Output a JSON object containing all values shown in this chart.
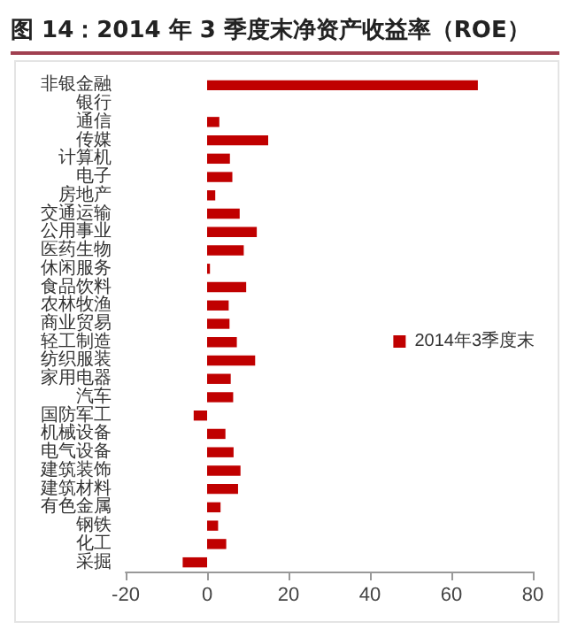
{
  "chart_data": {
    "type": "bar",
    "orientation": "horizontal",
    "title": "图 14：2014 年 3 季度末净资产收益率（ROE）",
    "categories": [
      "非银金融",
      "银行",
      "通信",
      "传媒",
      "计算机",
      "电子",
      "房地产",
      "交通运输",
      "公用事业",
      "医药生物",
      "休闲服务",
      "食品饮料",
      "农林牧渔",
      "商业贸易",
      "轻工制造",
      "纺织服装",
      "家用电器",
      "汽车",
      "国防军工",
      "机械设备",
      "电气设备",
      "建筑装饰",
      "建筑材料",
      "有色金属",
      "钢铁",
      "化工",
      "采掘"
    ],
    "series": [
      {
        "name": "2014年3季度末",
        "color": "#c00000",
        "values": [
          66.5,
          null,
          3,
          15,
          5.6,
          6.2,
          2,
          8,
          12.2,
          9,
          0.7,
          9.6,
          5.3,
          5.5,
          7.3,
          11.8,
          5.8,
          6.4,
          -3.3,
          4.5,
          6.5,
          8.2,
          7.6,
          3.3,
          2.7,
          4.7,
          -6
        ]
      }
    ],
    "xlim": [
      -20,
      80
    ],
    "xticks": [
      -20,
      0,
      20,
      40,
      60,
      80
    ],
    "grid": false,
    "legend": "right"
  }
}
